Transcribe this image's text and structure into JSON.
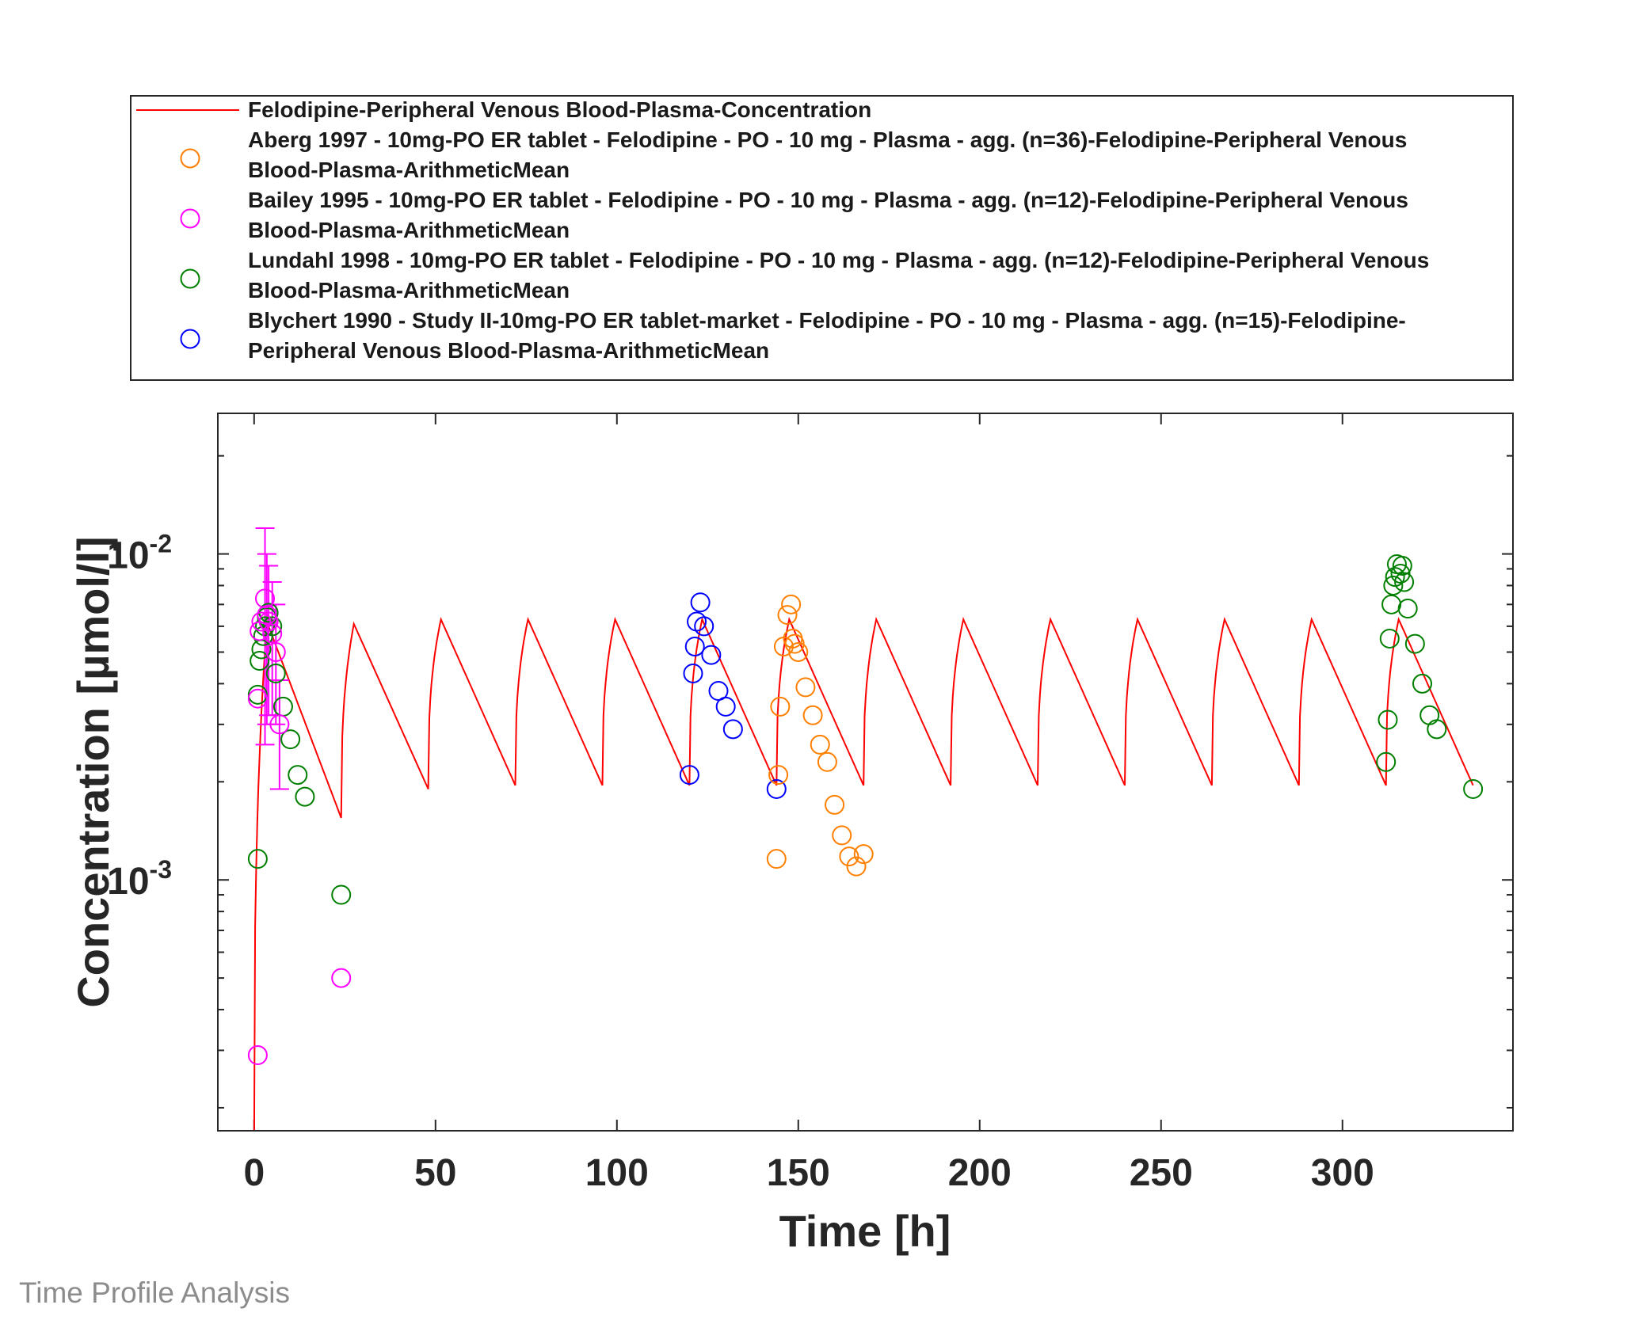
{
  "footer": {
    "text": "Time Profile Analysis"
  },
  "colors": {
    "simulation": "#ff0000",
    "aberg": "#ff8000",
    "bailey": "#ff00ff",
    "lundahl": "#007f00",
    "blychert": "#0000ff"
  },
  "chart_data": {
    "type": "line",
    "title": "",
    "xlabel": "Time [h]",
    "ylabel": "Concentration [µmol/l]",
    "xlim": [
      -10,
      347
    ],
    "ylim": [
      0.00017,
      0.027
    ],
    "yscale": "log",
    "grid": false,
    "legend_position": "top-outside",
    "xticks": [
      0,
      50,
      100,
      150,
      200,
      250,
      300
    ],
    "xtick_labels": [
      "0",
      "50",
      "100",
      "150",
      "200",
      "250",
      "300"
    ],
    "yticks": [
      {
        "value": 0.01,
        "base": "10",
        "exp": "-2"
      },
      {
        "value": 0.001,
        "base": "10",
        "exp": "-3"
      }
    ],
    "legend": [
      {
        "id": "simulation",
        "marker": "line",
        "lines": [
          "Felodipine-Peripheral Venous Blood-Plasma-Concentration"
        ]
      },
      {
        "id": "aberg",
        "marker": "circle",
        "lines": [
          "Aberg 1997 - 10mg-PO ER tablet - Felodipine - PO - 10 mg - Plasma - agg. (n=36)-Felodipine-Peripheral Venous",
          "Blood-Plasma-ArithmeticMean"
        ]
      },
      {
        "id": "bailey",
        "marker": "circle",
        "lines": [
          "Bailey 1995 - 10mg-PO ER tablet - Felodipine - PO - 10 mg - Plasma - agg. (n=12)-Felodipine-Peripheral Venous",
          "Blood-Plasma-ArithmeticMean"
        ]
      },
      {
        "id": "lundahl",
        "marker": "circle",
        "lines": [
          "Lundahl 1998 - 10mg-PO ER tablet - Felodipine - PO - 10 mg - Plasma - agg. (n=12)-Felodipine-Peripheral Venous",
          "Blood-Plasma-ArithmeticMean"
        ]
      },
      {
        "id": "blychert",
        "marker": "circle",
        "lines": [
          "Blychert 1990 - Study II-10mg-PO ER tablet-market - Felodipine - PO - 10 mg - Plasma - agg. (n=15)-Felodipine-",
          "Peripheral Venous Blood-Plasma-ArithmeticMean"
        ]
      }
    ],
    "simulation": {
      "name": "Felodipine-Peripheral Venous Blood-Plasma-Concentration",
      "dose_interval": 24,
      "segments": [
        {
          "t0": 0,
          "t_end": 24,
          "t_max": 3.5,
          "c_max": 0.0062,
          "c_trough": 0.00155
        },
        {
          "t0": 24,
          "t_end": 48,
          "t_max": 3.5,
          "c_max": 0.0061,
          "c_trough": 0.0019
        },
        {
          "t0": 48,
          "t_end": 72,
          "t_max": 3.5,
          "c_max": 0.0063,
          "c_trough": 0.00195
        },
        {
          "t0": 72,
          "t_end": 96,
          "t_max": 3.5,
          "c_max": 0.0063,
          "c_trough": 0.00195
        },
        {
          "t0": 96,
          "t_end": 120,
          "t_max": 3.5,
          "c_max": 0.0063,
          "c_trough": 0.00195
        },
        {
          "t0": 120,
          "t_end": 144,
          "t_max": 3.5,
          "c_max": 0.0063,
          "c_trough": 0.00195
        },
        {
          "t0": 144,
          "t_end": 168,
          "t_max": 3.5,
          "c_max": 0.0063,
          "c_trough": 0.00195
        },
        {
          "t0": 168,
          "t_end": 192,
          "t_max": 3.5,
          "c_max": 0.0063,
          "c_trough": 0.00195
        },
        {
          "t0": 192,
          "t_end": 216,
          "t_max": 3.5,
          "c_max": 0.0063,
          "c_trough": 0.00195
        },
        {
          "t0": 216,
          "t_end": 240,
          "t_max": 3.5,
          "c_max": 0.0063,
          "c_trough": 0.00195
        },
        {
          "t0": 240,
          "t_end": 264,
          "t_max": 3.5,
          "c_max": 0.0063,
          "c_trough": 0.00195
        },
        {
          "t0": 264,
          "t_end": 288,
          "t_max": 3.5,
          "c_max": 0.0063,
          "c_trough": 0.00195
        },
        {
          "t0": 288,
          "t_end": 312,
          "t_max": 3.5,
          "c_max": 0.0063,
          "c_trough": 0.00195
        },
        {
          "t0": 312,
          "t_end": 336,
          "t_max": 3.5,
          "c_max": 0.0063,
          "c_trough": 0.00195
        }
      ]
    },
    "series": [
      {
        "id": "lundahl",
        "points": [
          {
            "x": 1,
            "y": 0.00116
          },
          {
            "x": 1,
            "y": 0.0037
          },
          {
            "x": 1.5,
            "y": 0.0047
          },
          {
            "x": 2,
            "y": 0.0051
          },
          {
            "x": 2.5,
            "y": 0.0056
          },
          {
            "x": 3,
            "y": 0.006
          },
          {
            "x": 3.5,
            "y": 0.0064
          },
          {
            "x": 4,
            "y": 0.0066
          },
          {
            "x": 5,
            "y": 0.006
          },
          {
            "x": 6,
            "y": 0.0043
          },
          {
            "x": 8,
            "y": 0.0034
          },
          {
            "x": 10,
            "y": 0.0027
          },
          {
            "x": 12,
            "y": 0.0021
          },
          {
            "x": 14,
            "y": 0.0018
          },
          {
            "x": 24,
            "y": 0.0009
          },
          {
            "x": 312,
            "y": 0.0023
          },
          {
            "x": 312.5,
            "y": 0.0031
          },
          {
            "x": 313,
            "y": 0.0055
          },
          {
            "x": 313.5,
            "y": 0.007
          },
          {
            "x": 314,
            "y": 0.008
          },
          {
            "x": 314.5,
            "y": 0.0085
          },
          {
            "x": 315,
            "y": 0.0093
          },
          {
            "x": 316,
            "y": 0.0087
          },
          {
            "x": 316.5,
            "y": 0.0092
          },
          {
            "x": 317,
            "y": 0.0082
          },
          {
            "x": 318,
            "y": 0.0068
          },
          {
            "x": 320,
            "y": 0.0053
          },
          {
            "x": 322,
            "y": 0.004
          },
          {
            "x": 324,
            "y": 0.0032
          },
          {
            "x": 326,
            "y": 0.0029
          },
          {
            "x": 336,
            "y": 0.0019
          }
        ]
      },
      {
        "id": "bailey",
        "points": [
          {
            "x": 1,
            "y": 0.00029
          },
          {
            "x": 1,
            "y": 0.0036
          },
          {
            "x": 1.5,
            "y": 0.0058
          },
          {
            "x": 2,
            "y": 0.0062
          },
          {
            "x": 3,
            "y": 0.0073,
            "err": 0.0047
          },
          {
            "x": 3.5,
            "y": 0.0065,
            "err": 0.0035
          },
          {
            "x": 4,
            "y": 0.0062,
            "err": 0.003
          },
          {
            "x": 5,
            "y": 0.0057,
            "err": 0.0025
          },
          {
            "x": 6,
            "y": 0.005,
            "err": 0.002
          },
          {
            "x": 7,
            "y": 0.003,
            "err": 0.0011
          },
          {
            "x": 24,
            "y": 0.0005
          }
        ]
      },
      {
        "id": "blychert",
        "points": [
          {
            "x": 120,
            "y": 0.0021
          },
          {
            "x": 121,
            "y": 0.0043
          },
          {
            "x": 121.5,
            "y": 0.0052
          },
          {
            "x": 122,
            "y": 0.0062
          },
          {
            "x": 123,
            "y": 0.0071
          },
          {
            "x": 124,
            "y": 0.006
          },
          {
            "x": 126,
            "y": 0.0049
          },
          {
            "x": 128,
            "y": 0.0038
          },
          {
            "x": 130,
            "y": 0.0034
          },
          {
            "x": 132,
            "y": 0.0029
          },
          {
            "x": 144,
            "y": 0.0019
          }
        ]
      },
      {
        "id": "aberg",
        "points": [
          {
            "x": 144,
            "y": 0.00116
          },
          {
            "x": 144.5,
            "y": 0.0021
          },
          {
            "x": 145,
            "y": 0.0034
          },
          {
            "x": 146,
            "y": 0.0052
          },
          {
            "x": 147,
            "y": 0.0065
          },
          {
            "x": 148,
            "y": 0.007
          },
          {
            "x": 148.5,
            "y": 0.0055
          },
          {
            "x": 149,
            "y": 0.0053
          },
          {
            "x": 150,
            "y": 0.005
          },
          {
            "x": 152,
            "y": 0.0039
          },
          {
            "x": 154,
            "y": 0.0032
          },
          {
            "x": 156,
            "y": 0.0026
          },
          {
            "x": 158,
            "y": 0.0023
          },
          {
            "x": 160,
            "y": 0.0017
          },
          {
            "x": 162,
            "y": 0.00137
          },
          {
            "x": 164,
            "y": 0.00118
          },
          {
            "x": 166,
            "y": 0.0011
          },
          {
            "x": 168,
            "y": 0.0012
          }
        ]
      }
    ]
  }
}
